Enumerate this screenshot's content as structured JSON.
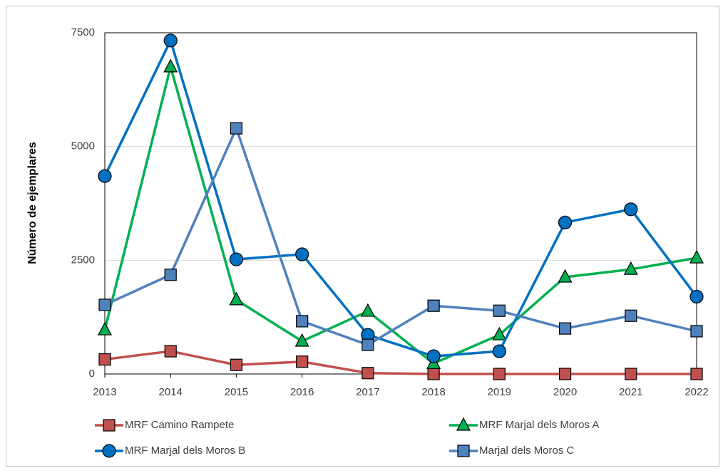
{
  "chart_data": {
    "type": "line",
    "y_label": "Número de ejemplares",
    "categories": [
      "2013",
      "2014",
      "2015",
      "2016",
      "2017",
      "2018",
      "2019",
      "2020",
      "2021",
      "2022"
    ],
    "ylim": [
      0,
      7500
    ],
    "yticks": [
      0,
      2500,
      5000,
      7500
    ],
    "grid": true,
    "series": [
      {
        "name": "MRF Camino Rampete",
        "color": "#c0504d",
        "marker": "square",
        "values": [
          320,
          500,
          200,
          270,
          20,
          0,
          0,
          0,
          0,
          0
        ]
      },
      {
        "name": "MRF Marjal dels Moros A",
        "color": "#00b050",
        "marker": "triangle",
        "values": [
          970,
          6750,
          1630,
          720,
          1380,
          230,
          860,
          2130,
          2300,
          2550
        ]
      },
      {
        "name": "MRF Marjal dels Moros B",
        "color": "#0070c0",
        "marker": "circle",
        "values": [
          4350,
          7330,
          2520,
          2630,
          860,
          390,
          500,
          3330,
          3620,
          1700
        ]
      },
      {
        "name": "Marjal dels Moros C",
        "color": "#4f81bd",
        "marker": "square",
        "values": [
          1520,
          2180,
          5400,
          1160,
          640,
          1500,
          1390,
          1000,
          1280,
          940
        ]
      }
    ]
  }
}
